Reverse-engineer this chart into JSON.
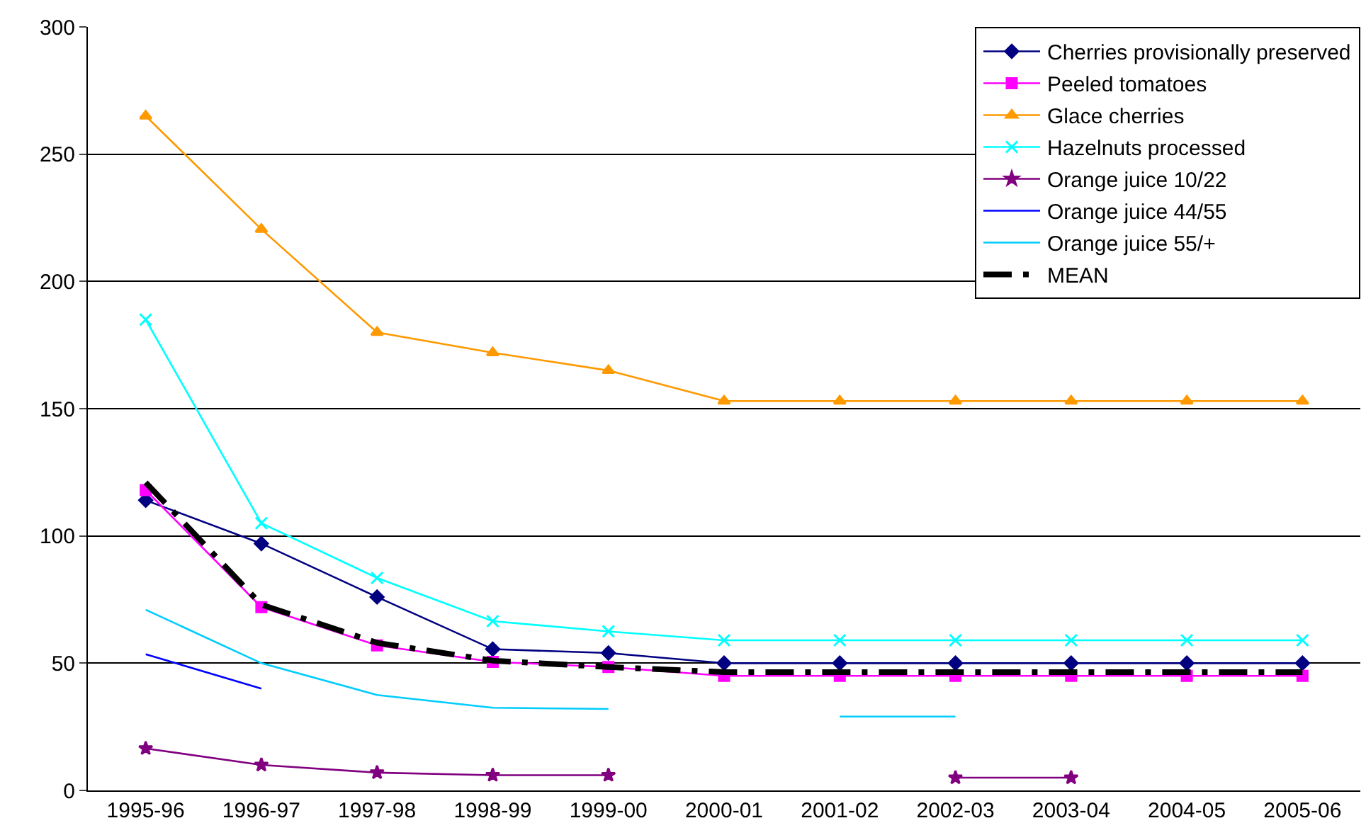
{
  "chart_data": {
    "type": "line",
    "categories": [
      "1995-96",
      "1996-97",
      "1997-98",
      "1998-99",
      "1999-00",
      "2000-01",
      "2001-02",
      "2002-03",
      "2003-04",
      "2004-05",
      "2005-06"
    ],
    "series": [
      {
        "name": "Cherries provisionally preserved",
        "color": "#000080",
        "marker": "diamond",
        "values": [
          114,
          97,
          76,
          55.5,
          54,
          50,
          50,
          50,
          50,
          50,
          50
        ]
      },
      {
        "name": "Peeled tomatoes",
        "color": "#ff00ff",
        "marker": "square",
        "values": [
          118,
          72,
          57,
          50.5,
          48.5,
          45,
          45,
          45,
          45,
          45,
          45
        ]
      },
      {
        "name": "Glace cherries",
        "color": "#ff9900",
        "marker": "triangle",
        "values": [
          265,
          220.5,
          180,
          172,
          165,
          153,
          153,
          153,
          153,
          153,
          153
        ]
      },
      {
        "name": "Hazelnuts processed",
        "color": "#00ffff",
        "marker": "cross",
        "values": [
          185,
          105,
          83.5,
          66.5,
          62.5,
          59,
          59,
          59,
          59,
          59,
          59
        ]
      },
      {
        "name": "Orange juice 10/22",
        "color": "#800080",
        "marker": "star",
        "values": [
          16.5,
          10,
          7,
          6,
          6,
          null,
          null,
          5,
          5,
          null,
          null
        ]
      },
      {
        "name": "Orange juice 44/55",
        "color": "#0000ff",
        "marker": "none",
        "values": [
          53.5,
          40,
          null,
          null,
          null,
          null,
          null,
          null,
          null,
          null,
          null
        ]
      },
      {
        "name": "Orange juice 55/+",
        "color": "#00ccff",
        "marker": "none",
        "values": [
          71,
          50,
          37.5,
          32.5,
          32,
          null,
          29,
          29,
          null,
          null,
          null
        ]
      },
      {
        "name": "MEAN",
        "color": "#000000",
        "marker": "none",
        "line_style": "dashed",
        "values": [
          121,
          73,
          58,
          51,
          48.5,
          46.5,
          46.5,
          46.5,
          46.5,
          46.5,
          46.5
        ]
      }
    ],
    "ylim": [
      0,
      300
    ],
    "yticks": [
      0,
      50,
      100,
      150,
      200,
      250,
      300
    ],
    "grid": "y",
    "legend": "top right"
  }
}
